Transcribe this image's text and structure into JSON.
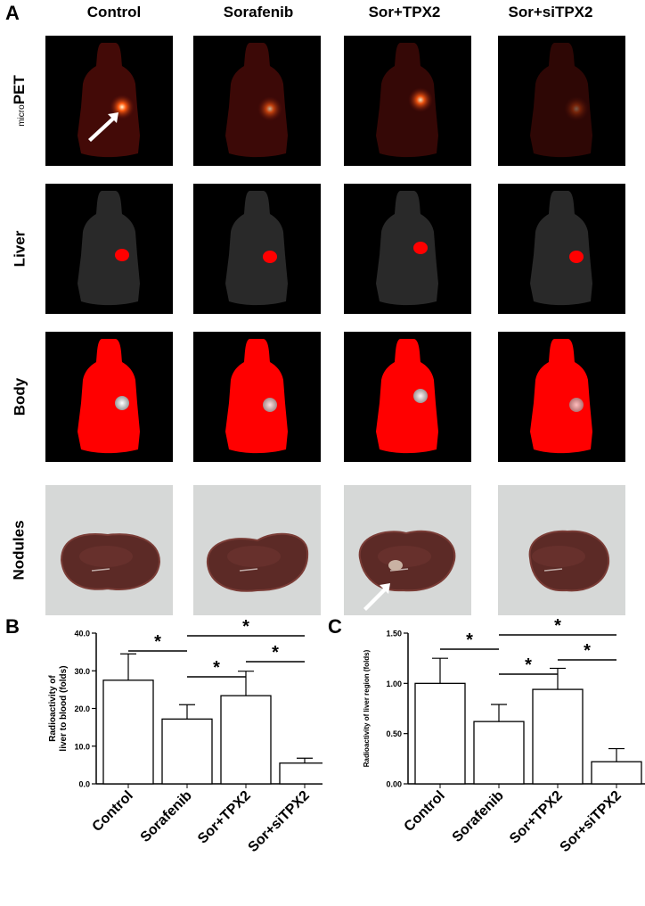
{
  "figure": {
    "panel_a_label": "A",
    "panel_b_label": "B",
    "panel_c_label": "C",
    "columns": [
      "Control",
      "Sorafenib",
      "Sor+TPX2",
      "Sor+siTPX2"
    ],
    "rows": [
      {
        "prefix": "micro",
        "label": "PET"
      },
      {
        "prefix": "",
        "label": "Liver"
      },
      {
        "prefix": "",
        "label": "Body"
      },
      {
        "prefix": "",
        "label": "Nodules"
      }
    ],
    "pet_hotspot_intensity": [
      1.0,
      0.7,
      0.9,
      0.35
    ],
    "colors": {
      "pet": "#5a0e0a",
      "hot": "#ffd9a0",
      "roi": "#ff0000",
      "liver_tissue": "#5c2a26",
      "background_photo": "#d6d8d7"
    }
  },
  "chart_data": [
    {
      "type": "bar",
      "panel": "B",
      "categories": [
        "Control",
        "Sorafenib",
        "Sor+TPX2",
        "Sor+siTPX2"
      ],
      "values": [
        27.5,
        17.2,
        23.4,
        5.5
      ],
      "errors": [
        7.0,
        3.8,
        6.5,
        1.3
      ],
      "ylabel": "Radioactivity of liver to blood (folds)",
      "ylabel_lines": [
        "Radioactivity of",
        "liver to blood (folds)"
      ],
      "ylim": [
        0,
        40
      ],
      "yticks": [
        "0.0",
        "10.0",
        "20.0",
        "30.0",
        "40.0"
      ],
      "significance": [
        {
          "from": 0,
          "to": 1,
          "label": "*"
        },
        {
          "from": 1,
          "to": 2,
          "label": "*"
        },
        {
          "from": 1,
          "to": 3,
          "label": "*"
        },
        {
          "from": 2,
          "to": 3,
          "label": "*"
        }
      ]
    },
    {
      "type": "bar",
      "panel": "C",
      "categories": [
        "Control",
        "Sorafenib",
        "Sor+TPX2",
        "Sor+siTPX2"
      ],
      "values": [
        1.0,
        0.62,
        0.94,
        0.22
      ],
      "errors": [
        0.25,
        0.17,
        0.21,
        0.13
      ],
      "ylabel": "Radioactivity of liver region (folds)",
      "ylabel_lines": [
        "Radioactivity of liver region (folds)"
      ],
      "ylim": [
        0,
        1.5
      ],
      "yticks": [
        "0.00",
        "0.50",
        "1.00",
        "1.50"
      ],
      "significance": [
        {
          "from": 0,
          "to": 1,
          "label": "*"
        },
        {
          "from": 1,
          "to": 2,
          "label": "*"
        },
        {
          "from": 1,
          "to": 3,
          "label": "*"
        },
        {
          "from": 2,
          "to": 3,
          "label": "*"
        }
      ]
    }
  ]
}
